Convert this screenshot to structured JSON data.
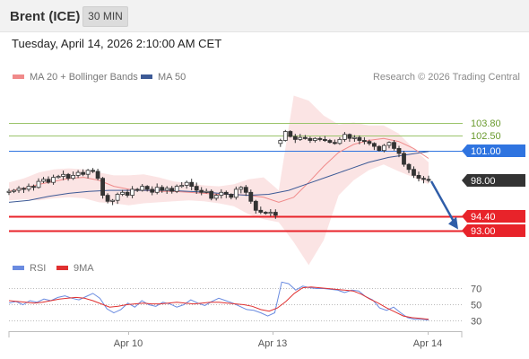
{
  "header": {
    "instrument": "Brent (ICE)",
    "timeframe": "30 MIN"
  },
  "datetime": "Tuesday, April 14, 2026 2:10:00 AM CET",
  "legend": {
    "bollinger_label": "MA 20 + Bollinger Bands",
    "ma50_label": "MA 50",
    "copyright": "Research © 2026 Trading Central"
  },
  "rsi_legend": {
    "rsi_label": "RSI",
    "ma_label": "9MA"
  },
  "colors": {
    "resistance_green": "#9bc46b",
    "pivot_blue": "#2f74e0",
    "support_red": "#e8232a",
    "last_price_bg": "#333333",
    "bollinger_fill": "#fbe1e1",
    "ma20": "#f08a8a",
    "ma50": "#3d5a96",
    "rsi_line": "#6a8be0",
    "rsi_ma": "#e03030",
    "arrow": "#2f5da8"
  },
  "levels": {
    "r2": "103.80",
    "r1": "102.50",
    "pivot": "101.00",
    "last": "98.00",
    "s1": "94.40",
    "s2": "93.00"
  },
  "x_axis": {
    "ticks": [
      "Apr 10",
      "Apr 13",
      "Apr 14"
    ]
  },
  "rsi_axis": {
    "ticks": [
      "70",
      "50",
      "30"
    ]
  },
  "chart_data": [
    {
      "type": "candlestick",
      "title": "",
      "y_unit": "",
      "price_levels": [
        {
          "label": "103.80",
          "value": 103.8,
          "kind": "resistance"
        },
        {
          "label": "102.50",
          "value": 102.5,
          "kind": "resistance"
        },
        {
          "label": "101.00",
          "value": 101.0,
          "kind": "pivot"
        },
        {
          "label": "98.00",
          "value": 98.0,
          "kind": "last"
        },
        {
          "label": "94.40",
          "value": 94.4,
          "kind": "support"
        },
        {
          "label": "93.00",
          "value": 93.0,
          "kind": "support"
        }
      ],
      "x_ticks": [
        "Apr 10",
        "Apr 13",
        "Apr 14"
      ],
      "close_path": [
        96.9,
        97.0,
        97.2,
        97.1,
        97.4,
        97.3,
        97.9,
        98.1,
        97.8,
        98.3,
        98.4,
        98.6,
        98.2,
        98.5,
        98.8,
        98.6,
        99.0,
        98.9,
        98.2,
        96.5,
        95.9,
        96.0,
        96.6,
        96.8,
        96.5,
        97.1,
        97.0,
        97.4,
        97.1,
        96.8,
        97.3,
        97.0,
        97.2,
        96.9,
        97.4,
        97.5,
        97.8,
        97.4,
        97.0,
        96.8,
        96.9,
        96.2,
        96.5,
        96.8,
        96.6,
        96.3,
        97.1,
        97.3,
        96.8,
        95.9,
        95.0,
        94.8,
        94.7,
        94.8,
        94.5,
        102.0,
        102.9,
        102.4,
        102.1,
        102.3,
        102.2,
        102.0,
        102.2,
        102.1,
        102.0,
        101.8,
        101.7,
        102.1,
        102.6,
        102.2,
        102.3,
        102.0,
        101.9,
        101.7,
        101.4,
        101.0,
        101.5,
        101.8,
        101.2,
        100.7,
        99.6,
        99.1,
        98.5,
        98.2,
        98.1,
        98.0
      ],
      "bollinger_upper_path": [
        97.8,
        98.2,
        98.8,
        99.1,
        99.2,
        99.1,
        98.8,
        98.5,
        98.5,
        98.6,
        98.3,
        97.9,
        97.7,
        97.5,
        97.4,
        97.6,
        98.1,
        98.3,
        97.0,
        106.5,
        106.0,
        104.5,
        103.6,
        103.8,
        103.5,
        103.5,
        102.7,
        101.2,
        99.8
      ],
      "bollinger_lower_path": [
        96.0,
        96.1,
        96.0,
        96.2,
        96.3,
        96.2,
        95.8,
        95.7,
        95.5,
        95.7,
        95.8,
        95.9,
        96.0,
        95.9,
        95.7,
        95.4,
        94.6,
        94.1,
        93.8,
        91.8,
        89.5,
        92.0,
        96.5,
        98.0,
        99.0,
        99.6,
        98.9,
        98.3,
        97.6
      ],
      "ma20_path": [
        96.9,
        97.2,
        97.6,
        97.9,
        98.2,
        98.3,
        98.0,
        97.4,
        97.1,
        97.0,
        96.9,
        96.9,
        96.8,
        96.7,
        96.6,
        96.6,
        96.5,
        96.3,
        95.8,
        96.3,
        97.8,
        99.4,
        100.8,
        101.6,
        102.0,
        102.2,
        101.9,
        101.2,
        100.2
      ],
      "ma50_path": [
        95.8,
        96.0,
        96.4,
        96.7,
        96.9,
        97.0,
        97.0,
        97.0,
        97.0,
        96.9,
        96.8,
        96.6,
        96.5,
        96.6,
        97.0,
        97.7,
        98.4,
        99.1,
        99.8,
        100.3,
        100.6,
        100.9
      ]
    },
    {
      "type": "line",
      "title": "",
      "series": [
        {
          "name": "RSI",
          "values": [
            52,
            54,
            50,
            55,
            53,
            57,
            55,
            59,
            61,
            58,
            56,
            60,
            64,
            58,
            45,
            40,
            44,
            52,
            47,
            55,
            50,
            48,
            53,
            51,
            47,
            50,
            56,
            52,
            49,
            54,
            58,
            55,
            52,
            48,
            44,
            43,
            40,
            36,
            40,
            78,
            76,
            68,
            73,
            71,
            70,
            70,
            69,
            68,
            65,
            68,
            67,
            60,
            56,
            46,
            43,
            47,
            40,
            34,
            32,
            32,
            31
          ]
        },
        {
          "name": "9MA",
          "values": [
            55,
            54,
            53,
            52,
            53,
            55,
            57,
            58,
            59,
            58,
            55,
            51,
            47,
            48,
            50,
            51,
            52,
            51,
            51,
            52,
            53,
            52,
            51,
            52,
            53,
            53,
            52,
            51,
            50,
            48,
            44,
            42,
            46,
            54,
            64,
            71,
            72,
            71,
            70,
            69,
            68,
            67,
            63,
            57,
            52,
            46,
            41,
            36,
            34,
            33,
            32
          ]
        }
      ],
      "y_ticks": [
        70,
        50,
        30
      ],
      "x_ticks": [
        "Apr 10",
        "Apr 13",
        "Apr 14"
      ]
    }
  ]
}
